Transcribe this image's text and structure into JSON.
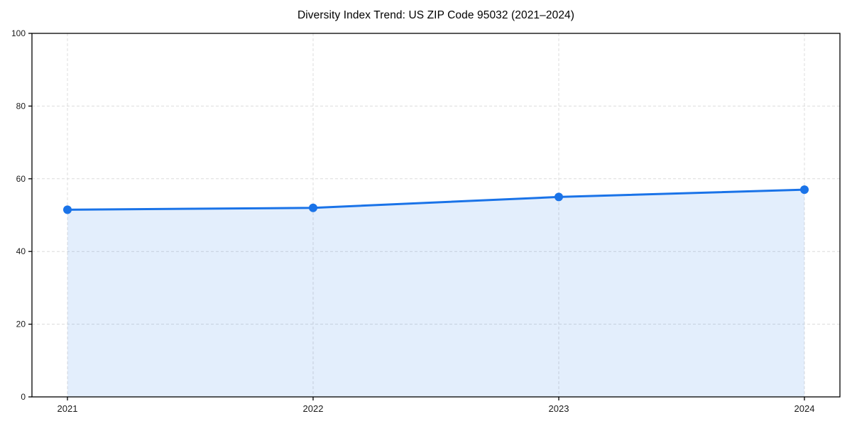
{
  "chart_data": {
    "type": "area",
    "title": "Diversity Index Trend: US ZIP Code 95032 (2021–2024)",
    "categories": [
      "2021",
      "2022",
      "2023",
      "2024"
    ],
    "series": [
      {
        "name": "Diversity Index",
        "values": [
          51.5,
          52,
          55,
          57
        ]
      }
    ],
    "xlabel": "",
    "ylabel": "",
    "ylim": [
      0,
      100
    ],
    "yticks": [
      0,
      20,
      40,
      60,
      80,
      100
    ],
    "grid": "dashed-both",
    "legend": "none",
    "marker": "circle",
    "colors": {
      "line": "#1a73e8",
      "marker": "#1a73e8",
      "fill": "#1a73e8",
      "fill_opacity": 0.12,
      "gridline": "#dcdcdc",
      "axis": "#000000",
      "tick_text": "#1a1a1a",
      "background": "#ffffff"
    }
  }
}
